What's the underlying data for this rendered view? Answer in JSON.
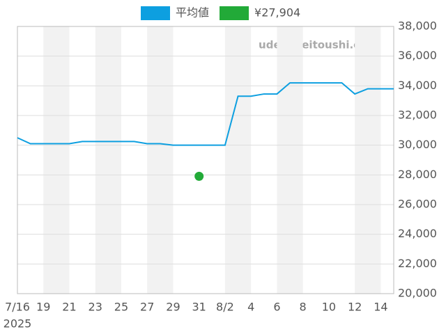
{
  "chart_data": {
    "type": "line",
    "categories": [
      "7/16",
      null,
      "19",
      null,
      "21",
      null,
      "23",
      null,
      "25",
      null,
      "27",
      null,
      "29",
      null,
      "31",
      null,
      "8/2",
      null,
      "4",
      null,
      "6",
      null,
      "8",
      null,
      "10",
      null,
      "12",
      null,
      "14",
      null
    ],
    "x_sublabel": "2025",
    "watermark": "udedokeitoushi.com",
    "series": [
      {
        "name": "平均値",
        "color": "#0d9fe0",
        "values": [
          30500,
          30100,
          30100,
          30100,
          30100,
          30250,
          30250,
          30250,
          30250,
          30250,
          30100,
          30100,
          30000,
          30000,
          30000,
          30000,
          30000,
          33300,
          33300,
          33450,
          33450,
          34200,
          34200,
          34200,
          34200,
          34200,
          33450,
          33800,
          33800,
          33800
        ]
      },
      {
        "name": "¥27,904",
        "color": "#22aa38",
        "values": [
          null,
          null,
          null,
          null,
          null,
          null,
          null,
          null,
          null,
          null,
          null,
          null,
          null,
          null,
          27904,
          null,
          null,
          null,
          null,
          null,
          null,
          null,
          null,
          null,
          null,
          null,
          null,
          null,
          null,
          null
        ]
      }
    ],
    "ylim": [
      20000,
      38000
    ],
    "yticks": [
      {
        "value": 20000,
        "label": "20,000"
      },
      {
        "value": 22000,
        "label": "22,000"
      },
      {
        "value": 24000,
        "label": "24,000"
      },
      {
        "value": 26000,
        "label": "26,000"
      },
      {
        "value": 28000,
        "label": "28,000"
      },
      {
        "value": 30000,
        "label": "30,000"
      },
      {
        "value": 32000,
        "label": "32,000"
      },
      {
        "value": 34000,
        "label": "34,000"
      },
      {
        "value": 36000,
        "label": "36,000"
      },
      {
        "value": 38000,
        "label": "38,000"
      }
    ],
    "grid": true
  }
}
